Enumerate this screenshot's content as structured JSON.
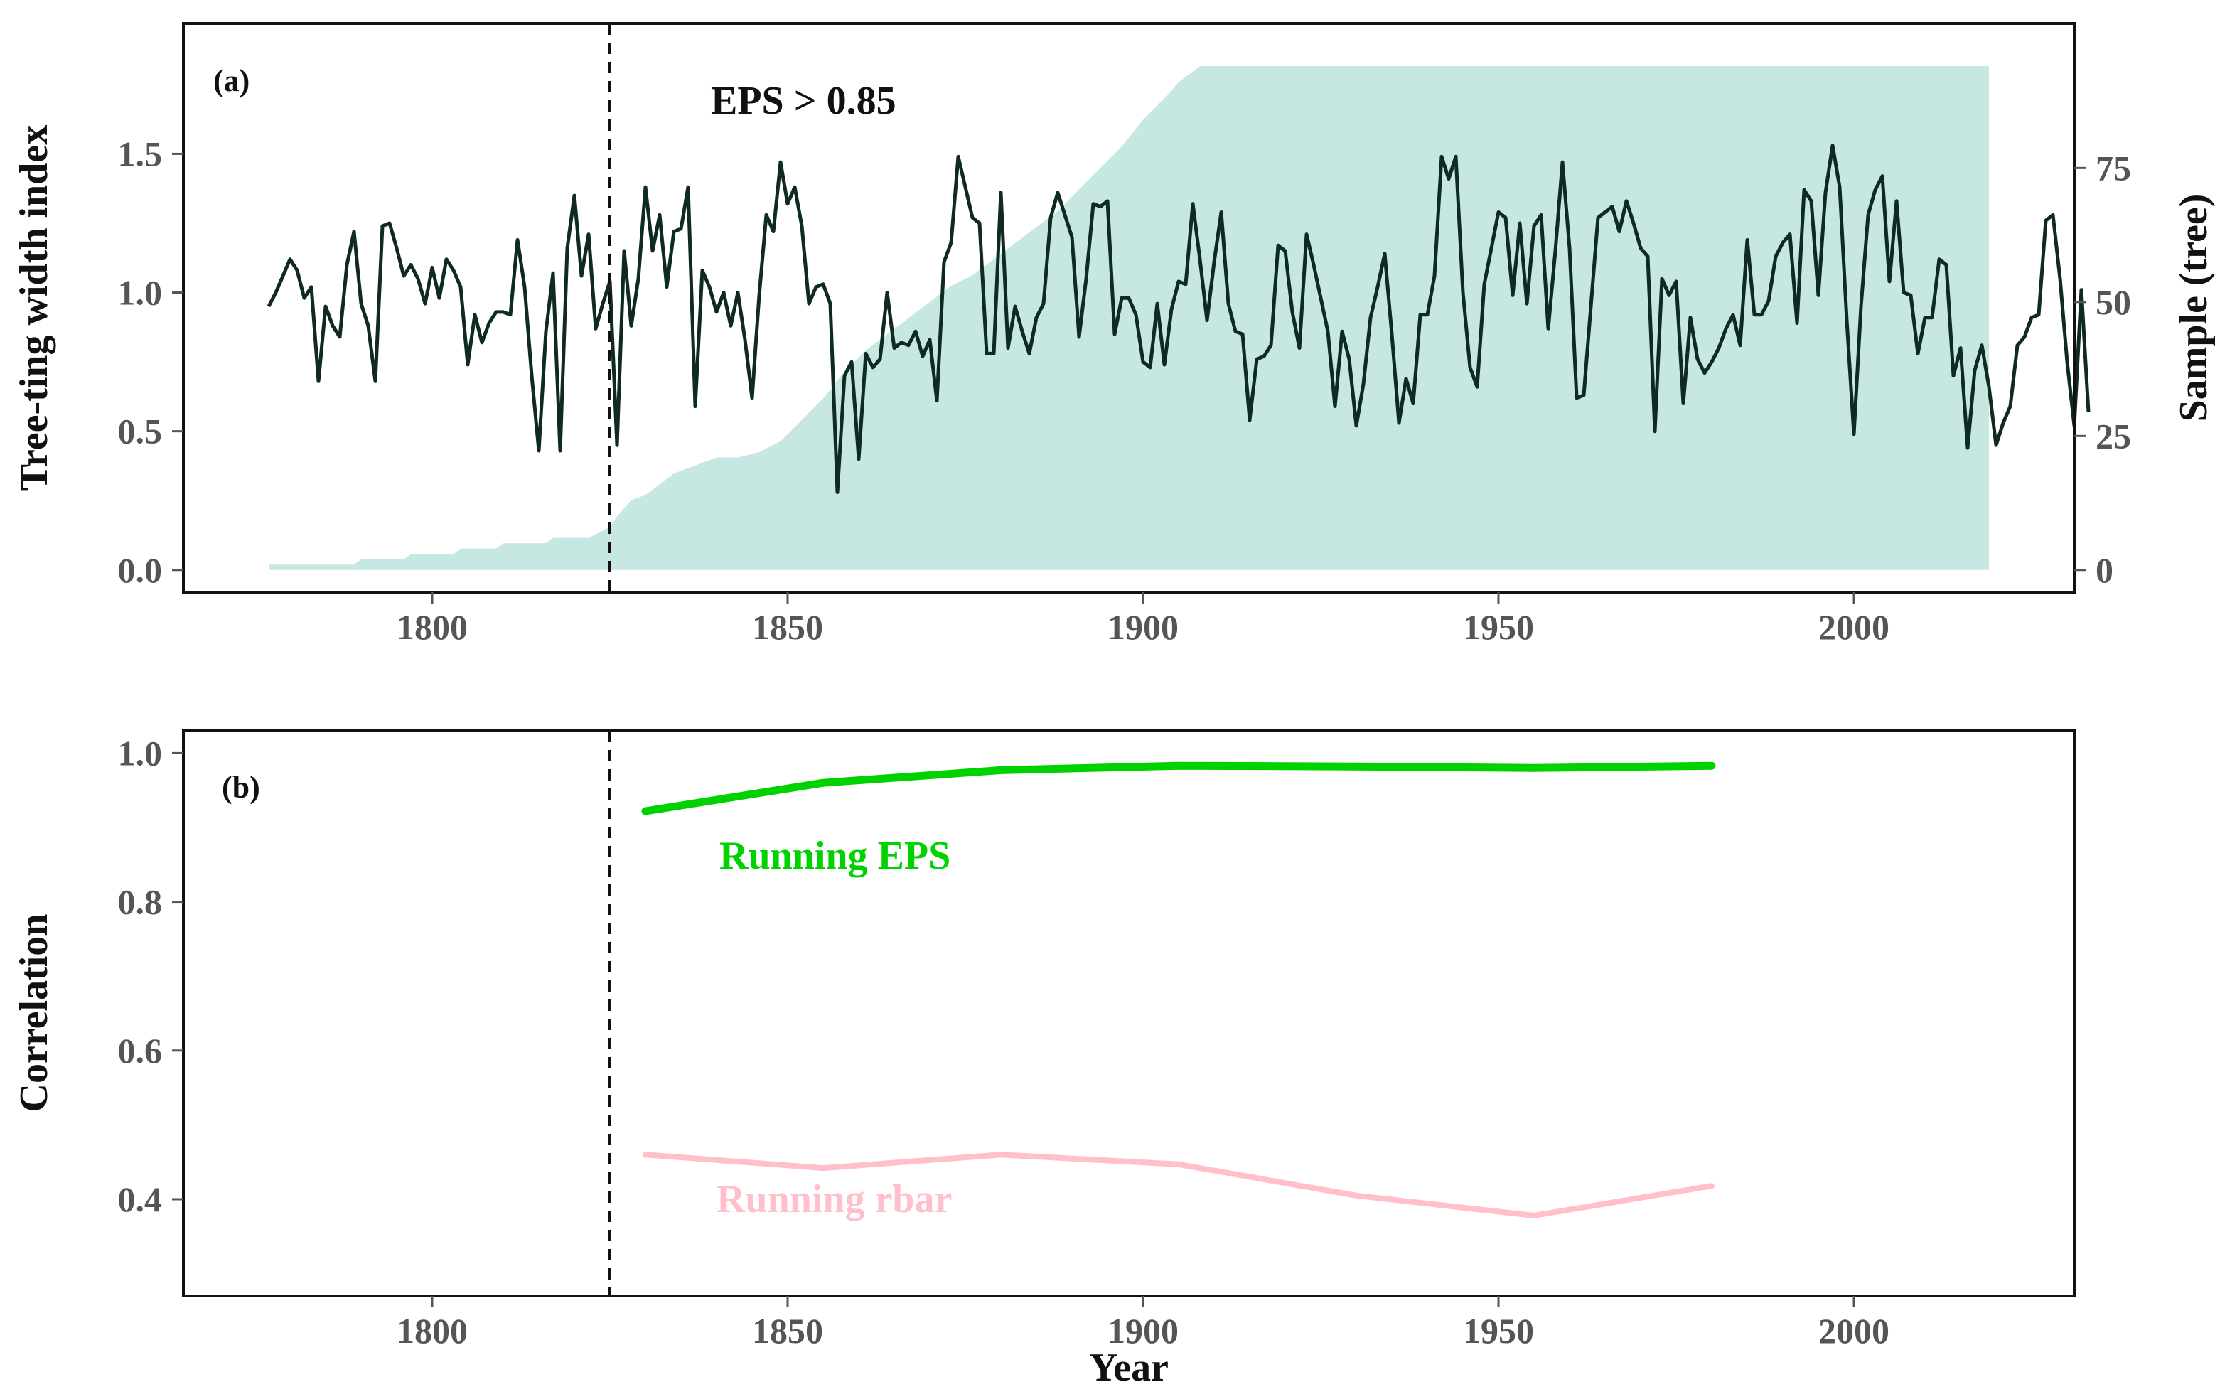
{
  "chart_data": [
    {
      "type": "line",
      "panel": "(a)",
      "annotation": "EPS > 0.85",
      "ylabel": "Tree-ting width index",
      "ylabel_right": "Sample (tree)",
      "xlabel": "",
      "xlim": [
        1765,
        2031
      ],
      "ylim": [
        -0.08,
        1.97
      ],
      "ylim_right": [
        -4.14,
        101.97
      ],
      "x_ticks": [
        "1800",
        "1850",
        "1900",
        "1950",
        "2000"
      ],
      "y_ticks": [
        "0.0",
        "0.5",
        "1.0",
        "1.5"
      ],
      "y_ticks_right": [
        "0",
        "25",
        "50",
        "75"
      ],
      "eps_cutoff_year": 1825,
      "colors": {
        "index": "#0f2a22",
        "sample_fill": "#c7e8e2",
        "cutoff": "#111111"
      },
      "series": [
        {
          "name": "Tree-ring width index",
          "start_year": 1777,
          "values": [
            0.95,
            1.0,
            1.06,
            1.12,
            1.08,
            0.98,
            1.02,
            0.68,
            0.95,
            0.88,
            0.84,
            1.1,
            1.22,
            0.96,
            0.88,
            0.68,
            1.24,
            1.25,
            1.16,
            1.06,
            1.1,
            1.05,
            0.96,
            1.09,
            0.98,
            1.12,
            1.08,
            1.02,
            0.74,
            0.92,
            0.82,
            0.89,
            0.93,
            0.93,
            0.92,
            1.19,
            1.02,
            0.7,
            0.43,
            0.86,
            1.07,
            0.43,
            1.16,
            1.35,
            1.06,
            1.21,
            0.87,
            0.96,
            1.04,
            0.45,
            1.15,
            0.88,
            1.05,
            1.38,
            1.15,
            1.28,
            1.02,
            1.22,
            1.23,
            1.38,
            0.59,
            1.08,
            1.02,
            0.93,
            1.0,
            0.88,
            1.0,
            0.83,
            0.62,
            0.99,
            1.28,
            1.22,
            1.47,
            1.32,
            1.38,
            1.24,
            0.96,
            1.02,
            1.03,
            0.96,
            0.28,
            0.7,
            0.75,
            0.4,
            0.78,
            0.73,
            0.76,
            1.0,
            0.8,
            0.82,
            0.81,
            0.86,
            0.77,
            0.83,
            0.61,
            1.11,
            1.18,
            1.49,
            1.38,
            1.27,
            1.25,
            0.78,
            0.78,
            1.36,
            0.8,
            0.95,
            0.86,
            0.78,
            0.91,
            0.96,
            1.27,
            1.36,
            1.28,
            1.2,
            0.84,
            1.05,
            1.32,
            1.31,
            1.33,
            0.85,
            0.98,
            0.98,
            0.92,
            0.75,
            0.73,
            0.96,
            0.74,
            0.94,
            1.04,
            1.03,
            1.32,
            1.12,
            0.9,
            1.11,
            1.29,
            0.96,
            0.86,
            0.85,
            0.54,
            0.76,
            0.77,
            0.81,
            1.17,
            1.15,
            0.93,
            0.8,
            1.21,
            1.1,
            0.98,
            0.86,
            0.59,
            0.86,
            0.76,
            0.52,
            0.67,
            0.91,
            1.02,
            1.14,
            0.85,
            0.53,
            0.69,
            0.6,
            0.92,
            0.92,
            1.06,
            1.49,
            1.41,
            1.49,
            1.0,
            0.73,
            0.66,
            1.03,
            1.16,
            1.29,
            1.27,
            0.99,
            1.25,
            0.96,
            1.24,
            1.28,
            0.87,
            1.15,
            1.47,
            1.16,
            0.62,
            0.63,
            0.95,
            1.27,
            1.29,
            1.31,
            1.22,
            1.33,
            1.25,
            1.16,
            1.13,
            0.5,
            1.05,
            0.99,
            1.04,
            0.6,
            0.91,
            0.76,
            0.71,
            0.75,
            0.8,
            0.87,
            0.92,
            0.81,
            1.19,
            0.92,
            0.92,
            0.97,
            1.13,
            1.18,
            1.21,
            0.89,
            1.37,
            1.33,
            0.99,
            1.36,
            1.53,
            1.38,
            0.9,
            0.49,
            0.95,
            1.28,
            1.37,
            1.42,
            1.04,
            1.33,
            1.0,
            0.99,
            0.78,
            0.91,
            0.91,
            1.12,
            1.1,
            0.7,
            0.8,
            0.44,
            0.72,
            0.81,
            0.66,
            0.45,
            0.53,
            0.59,
            0.81,
            0.84,
            0.91,
            0.92,
            1.26,
            1.28,
            1.05,
            0.75,
            0.52,
            1.01,
            0.57
          ]
        },
        {
          "name": "Sample (tree)",
          "axis": "right",
          "years": [
            1777,
            1789,
            1790,
            1796,
            1797,
            1803,
            1804,
            1809,
            1810,
            1816,
            1817,
            1822,
            1825,
            1826,
            1828,
            1830,
            1832,
            1834,
            1836,
            1838,
            1840,
            1843,
            1846,
            1849,
            1852,
            1855,
            1858,
            1861,
            1864,
            1867,
            1870,
            1873,
            1876,
            1879,
            1882,
            1885,
            1888,
            1891,
            1894,
            1897,
            1900,
            1903,
            1905,
            1907,
            1908,
            2019
          ],
          "values": [
            1,
            1,
            2,
            2,
            3,
            3,
            4,
            4,
            5,
            5,
            6,
            6,
            8,
            10,
            13,
            14,
            16,
            18,
            19,
            20,
            21,
            21,
            22,
            24,
            28,
            32,
            37,
            41,
            44,
            47,
            50,
            53,
            55,
            58,
            61,
            64,
            67,
            71,
            75,
            79,
            84,
            88,
            91,
            93,
            94,
            94
          ]
        }
      ]
    },
    {
      "type": "line",
      "panel": "(b)",
      "xlabel": "Year",
      "ylabel": "Correlation",
      "xlim": [
        1765,
        2031
      ],
      "ylim": [
        0.27,
        1.03
      ],
      "x_ticks": [
        "1800",
        "1850",
        "1900",
        "1950",
        "2000"
      ],
      "y_ticks": [
        "0.4",
        "0.6",
        "0.8",
        "1.0"
      ],
      "eps_cutoff_year": 1825,
      "series": [
        {
          "name": "Running EPS",
          "label": "Running EPS",
          "color": "#00d200",
          "x": [
            1830,
            1855,
            1880,
            1905,
            1930,
            1955,
            1980
          ],
          "values": [
            0.922,
            0.96,
            0.977,
            0.983,
            0.982,
            0.98,
            0.983
          ]
        },
        {
          "name": "Running rbar",
          "label": "Running rbar",
          "color": "#ffc0cb",
          "x": [
            1830,
            1855,
            1880,
            1905,
            1930,
            1955,
            1980
          ],
          "values": [
            0.46,
            0.442,
            0.46,
            0.447,
            0.405,
            0.378,
            0.418
          ]
        }
      ]
    }
  ]
}
